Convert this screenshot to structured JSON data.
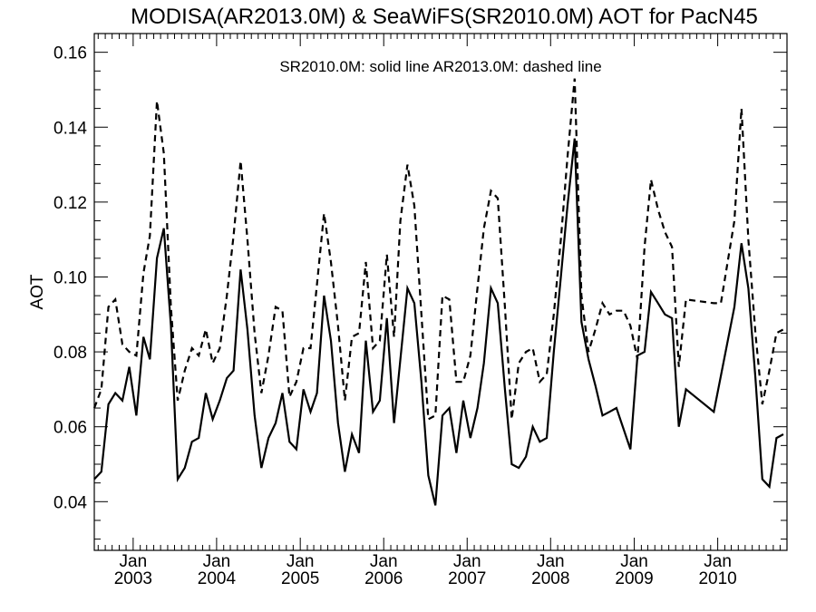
{
  "chart_data": {
    "type": "line",
    "title": "MODISA(AR2013.0M) & SeaWiFS(SR2010.0M)  AOT for PacN45",
    "annotation": "SR2010.0M: solid line   AR2013.0M: dashed line",
    "xlabel": "",
    "ylabel": "AOT",
    "xlim": [
      "2002-07-15",
      "2010-10-31"
    ],
    "ylim": [
      0.027,
      0.165
    ],
    "yticks": [
      0.04,
      0.06,
      0.08,
      0.1,
      0.12,
      0.14,
      0.16
    ],
    "ytick_labels": [
      "0.04",
      "0.06",
      "0.08",
      "0.10",
      "0.12",
      "0.14",
      "0.16"
    ],
    "xticks": [
      {
        "date": "2003-01-01",
        "month": "Jan",
        "year": "2003"
      },
      {
        "date": "2004-01-01",
        "month": "Jan",
        "year": "2004"
      },
      {
        "date": "2005-01-01",
        "month": "Jan",
        "year": "2005"
      },
      {
        "date": "2006-01-01",
        "month": "Jan",
        "year": "2006"
      },
      {
        "date": "2007-01-01",
        "month": "Jan",
        "year": "2007"
      },
      {
        "date": "2008-01-01",
        "month": "Jan",
        "year": "2008"
      },
      {
        "date": "2009-01-01",
        "month": "Jan",
        "year": "2009"
      },
      {
        "date": "2010-01-01",
        "month": "Jan",
        "year": "2010"
      }
    ],
    "grid": false,
    "series": [
      {
        "name": "SR2010.0M",
        "style": "solid",
        "color": "#000000",
        "points": [
          [
            "2002-07-15",
            0.046
          ],
          [
            "2002-08-15",
            0.048
          ],
          [
            "2002-09-15",
            0.066
          ],
          [
            "2002-10-15",
            0.069
          ],
          [
            "2002-11-15",
            0.067
          ],
          [
            "2002-12-15",
            0.076
          ],
          [
            "2003-01-15",
            0.063
          ],
          [
            "2003-02-15",
            0.084
          ],
          [
            "2003-03-15",
            0.078
          ],
          [
            "2003-04-15",
            0.105
          ],
          [
            "2003-05-15",
            0.113
          ],
          [
            "2003-06-15",
            0.087
          ],
          [
            "2003-07-15",
            0.046
          ],
          [
            "2003-08-15",
            0.049
          ],
          [
            "2003-09-15",
            0.056
          ],
          [
            "2003-10-15",
            0.057
          ],
          [
            "2003-11-15",
            0.069
          ],
          [
            "2003-12-15",
            0.062
          ],
          [
            "2004-01-15",
            0.067
          ],
          [
            "2004-02-15",
            0.073
          ],
          [
            "2004-03-15",
            0.075
          ],
          [
            "2004-04-15",
            0.102
          ],
          [
            "2004-05-15",
            0.086
          ],
          [
            "2004-06-15",
            0.063
          ],
          [
            "2004-07-15",
            0.049
          ],
          [
            "2004-08-15",
            0.057
          ],
          [
            "2004-09-15",
            0.061
          ],
          [
            "2004-10-15",
            0.069
          ],
          [
            "2004-11-15",
            0.056
          ],
          [
            "2004-12-15",
            0.054
          ],
          [
            "2005-01-15",
            0.07
          ],
          [
            "2005-02-15",
            0.064
          ],
          [
            "2005-03-15",
            0.069
          ],
          [
            "2005-04-15",
            0.095
          ],
          [
            "2005-05-15",
            0.083
          ],
          [
            "2005-06-15",
            0.061
          ],
          [
            "2005-07-15",
            0.048
          ],
          [
            "2005-08-15",
            0.058
          ],
          [
            "2005-09-15",
            0.053
          ],
          [
            "2005-10-15",
            0.083
          ],
          [
            "2005-11-15",
            0.064
          ],
          [
            "2005-12-15",
            0.067
          ],
          [
            "2006-01-15",
            0.089
          ],
          [
            "2006-02-15",
            0.061
          ],
          [
            "2006-03-15",
            0.078
          ],
          [
            "2006-04-15",
            0.097
          ],
          [
            "2006-05-15",
            0.093
          ],
          [
            "2006-06-15",
            0.072
          ],
          [
            "2006-07-15",
            0.047
          ],
          [
            "2006-08-15",
            0.039
          ],
          [
            "2006-09-15",
            0.063
          ],
          [
            "2006-10-15",
            0.065
          ],
          [
            "2006-11-15",
            0.053
          ],
          [
            "2006-12-15",
            0.067
          ],
          [
            "2007-01-15",
            0.057
          ],
          [
            "2007-02-15",
            0.065
          ],
          [
            "2007-03-15",
            0.077
          ],
          [
            "2007-04-15",
            0.097
          ],
          [
            "2007-05-15",
            0.093
          ],
          [
            "2007-06-15",
            0.07
          ],
          [
            "2007-07-15",
            0.05
          ],
          [
            "2007-08-15",
            0.049
          ],
          [
            "2007-09-15",
            0.052
          ],
          [
            "2007-10-15",
            0.06
          ],
          [
            "2007-11-15",
            0.056
          ],
          [
            "2007-12-15",
            0.057
          ],
          [
            "2008-01-15",
            0.08
          ],
          [
            "2008-02-15",
            0.1
          ],
          [
            "2008-03-15",
            0.119
          ],
          [
            "2008-04-15",
            0.137
          ],
          [
            "2008-05-15",
            0.088
          ],
          [
            "2008-06-15",
            0.078
          ],
          [
            "2008-07-15",
            0.071
          ],
          [
            "2008-08-15",
            0.063
          ],
          [
            "2008-09-15",
            0.064
          ],
          [
            "2008-10-15",
            0.065
          ],
          [
            "2008-12-15",
            0.054
          ],
          [
            "2009-01-15",
            0.079
          ],
          [
            "2009-02-15",
            0.08
          ],
          [
            "2009-03-15",
            0.096
          ],
          [
            "2009-04-15",
            0.093
          ],
          [
            "2009-05-15",
            0.09
          ],
          [
            "2009-06-15",
            0.089
          ],
          [
            "2009-07-15",
            0.06
          ],
          [
            "2009-08-15",
            0.07
          ],
          [
            "2009-12-15",
            0.064
          ],
          [
            "2010-03-15",
            0.092
          ],
          [
            "2010-04-15",
            0.109
          ],
          [
            "2010-05-15",
            0.097
          ],
          [
            "2010-06-15",
            0.073
          ],
          [
            "2010-07-15",
            0.046
          ],
          [
            "2010-08-15",
            0.044
          ],
          [
            "2010-09-15",
            0.057
          ],
          [
            "2010-10-15",
            0.058
          ]
        ]
      },
      {
        "name": "AR2013.0M",
        "style": "dashed",
        "color": "#000000",
        "points": [
          [
            "2002-07-15",
            0.065
          ],
          [
            "2002-08-15",
            0.07
          ],
          [
            "2002-09-15",
            0.092
          ],
          [
            "2002-10-15",
            0.094
          ],
          [
            "2002-11-15",
            0.082
          ],
          [
            "2002-12-15",
            0.08
          ],
          [
            "2003-01-15",
            0.079
          ],
          [
            "2003-02-15",
            0.101
          ],
          [
            "2003-03-15",
            0.111
          ],
          [
            "2003-04-15",
            0.147
          ],
          [
            "2003-05-15",
            0.133
          ],
          [
            "2003-06-15",
            0.092
          ],
          [
            "2003-07-15",
            0.067
          ],
          [
            "2003-08-15",
            0.075
          ],
          [
            "2003-09-15",
            0.081
          ],
          [
            "2003-10-15",
            0.079
          ],
          [
            "2003-11-15",
            0.086
          ],
          [
            "2003-12-15",
            0.077
          ],
          [
            "2004-01-15",
            0.081
          ],
          [
            "2004-02-15",
            0.095
          ],
          [
            "2004-03-15",
            0.111
          ],
          [
            "2004-04-15",
            0.131
          ],
          [
            "2004-05-15",
            0.11
          ],
          [
            "2004-06-15",
            0.085
          ],
          [
            "2004-07-15",
            0.069
          ],
          [
            "2004-08-15",
            0.079
          ],
          [
            "2004-09-15",
            0.092
          ],
          [
            "2004-10-15",
            0.091
          ],
          [
            "2004-11-15",
            0.068
          ],
          [
            "2004-12-15",
            0.072
          ],
          [
            "2005-01-15",
            0.081
          ],
          [
            "2005-02-15",
            0.081
          ],
          [
            "2005-03-15",
            0.098
          ],
          [
            "2005-04-15",
            0.117
          ],
          [
            "2005-05-15",
            0.104
          ],
          [
            "2005-06-15",
            0.087
          ],
          [
            "2005-07-15",
            0.067
          ],
          [
            "2005-08-15",
            0.084
          ],
          [
            "2005-09-15",
            0.085
          ],
          [
            "2005-10-15",
            0.104
          ],
          [
            "2005-11-15",
            0.081
          ],
          [
            "2005-12-15",
            0.083
          ],
          [
            "2006-01-15",
            0.106
          ],
          [
            "2006-02-15",
            0.084
          ],
          [
            "2006-03-15",
            0.115
          ],
          [
            "2006-04-15",
            0.13
          ],
          [
            "2006-05-15",
            0.119
          ],
          [
            "2006-06-15",
            0.09
          ],
          [
            "2006-07-15",
            0.062
          ],
          [
            "2006-08-15",
            0.063
          ],
          [
            "2006-09-15",
            0.095
          ],
          [
            "2006-10-15",
            0.094
          ],
          [
            "2006-11-15",
            0.072
          ],
          [
            "2006-12-15",
            0.072
          ],
          [
            "2007-01-15",
            0.079
          ],
          [
            "2007-02-15",
            0.097
          ],
          [
            "2007-03-15",
            0.113
          ],
          [
            "2007-04-15",
            0.123
          ],
          [
            "2007-05-15",
            0.121
          ],
          [
            "2007-06-15",
            0.092
          ],
          [
            "2007-07-15",
            0.062
          ],
          [
            "2007-08-15",
            0.077
          ],
          [
            "2007-09-15",
            0.08
          ],
          [
            "2007-10-15",
            0.081
          ],
          [
            "2007-11-15",
            0.072
          ],
          [
            "2007-12-15",
            0.074
          ],
          [
            "2008-01-15",
            0.09
          ],
          [
            "2008-02-15",
            0.11
          ],
          [
            "2008-03-15",
            0.132
          ],
          [
            "2008-04-15",
            0.153
          ],
          [
            "2008-05-15",
            0.095
          ],
          [
            "2008-06-15",
            0.08
          ],
          [
            "2008-07-15",
            0.086
          ],
          [
            "2008-08-15",
            0.093
          ],
          [
            "2008-09-15",
            0.09
          ],
          [
            "2008-10-15",
            0.091
          ],
          [
            "2008-11-15",
            0.091
          ],
          [
            "2008-12-15",
            0.087
          ],
          [
            "2009-01-15",
            0.078
          ],
          [
            "2009-02-15",
            0.108
          ],
          [
            "2009-03-15",
            0.126
          ],
          [
            "2009-04-15",
            0.118
          ],
          [
            "2009-05-15",
            0.112
          ],
          [
            "2009-06-15",
            0.108
          ],
          [
            "2009-07-15",
            0.076
          ],
          [
            "2009-08-15",
            0.094
          ],
          [
            "2009-12-15",
            0.093
          ],
          [
            "2010-01-15",
            0.093
          ],
          [
            "2010-03-15",
            0.115
          ],
          [
            "2010-04-15",
            0.145
          ],
          [
            "2010-05-15",
            0.11
          ],
          [
            "2010-06-15",
            0.085
          ],
          [
            "2010-07-15",
            0.066
          ],
          [
            "2010-08-15",
            0.075
          ],
          [
            "2010-09-15",
            0.085
          ],
          [
            "2010-10-15",
            0.086
          ]
        ]
      }
    ]
  }
}
